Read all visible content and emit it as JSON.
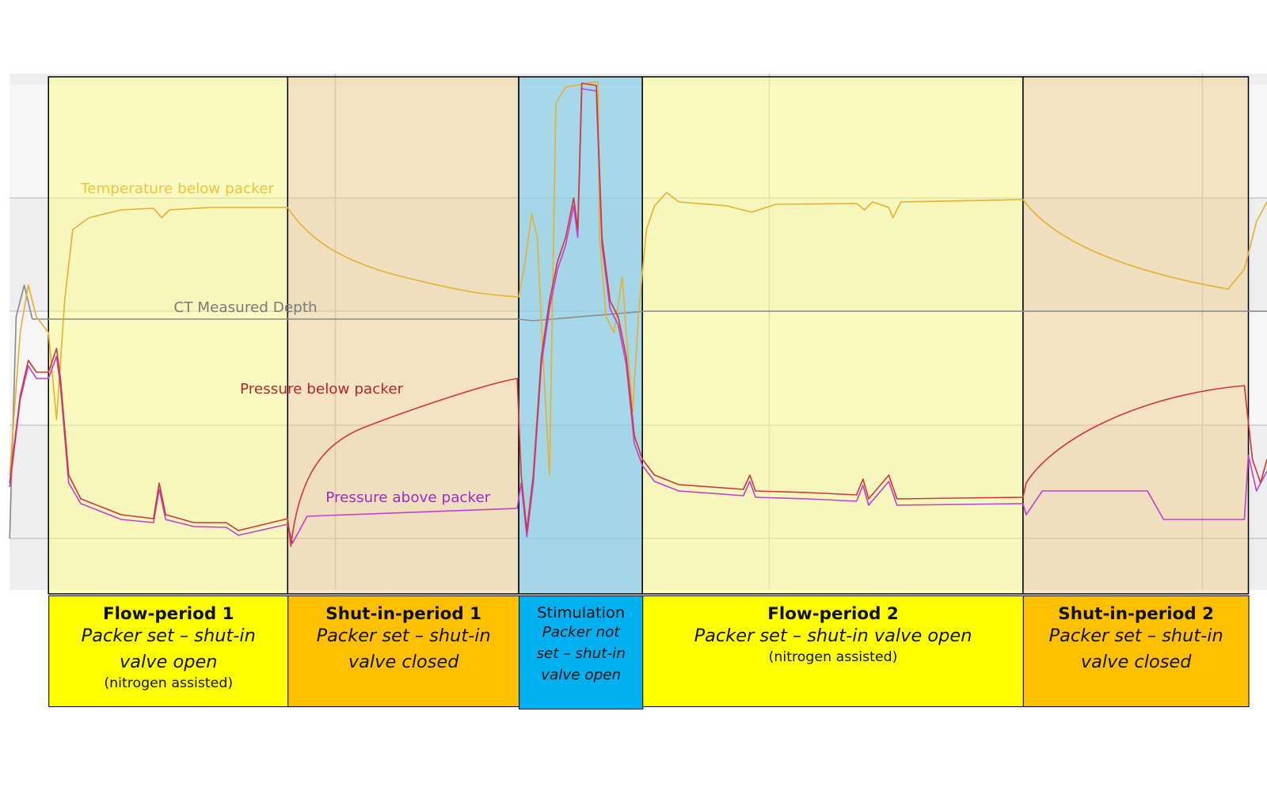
{
  "curve_labels": [
    "Temperature below packer",
    "CT Measured Depth",
    "Pressure below packer",
    "Pressure above packer"
  ],
  "periods": [
    {
      "title": "Flow-period 1",
      "description": "Packer set – shut-in valve open",
      "note": "(nitrogen assisted)"
    },
    {
      "title": "Shut-in-period 1",
      "description": "Packer set – shut-in valve closed"
    },
    {
      "title": "Stimulation",
      "description": "Packer not set – shut-in valve open"
    },
    {
      "title": "Flow-period 2",
      "description": "Packer set – shut-in valve open",
      "note": "(nitrogen assisted)"
    },
    {
      "title": "Shut-in-period 2",
      "description": "Packer set – shut-in valve closed"
    }
  ]
}
